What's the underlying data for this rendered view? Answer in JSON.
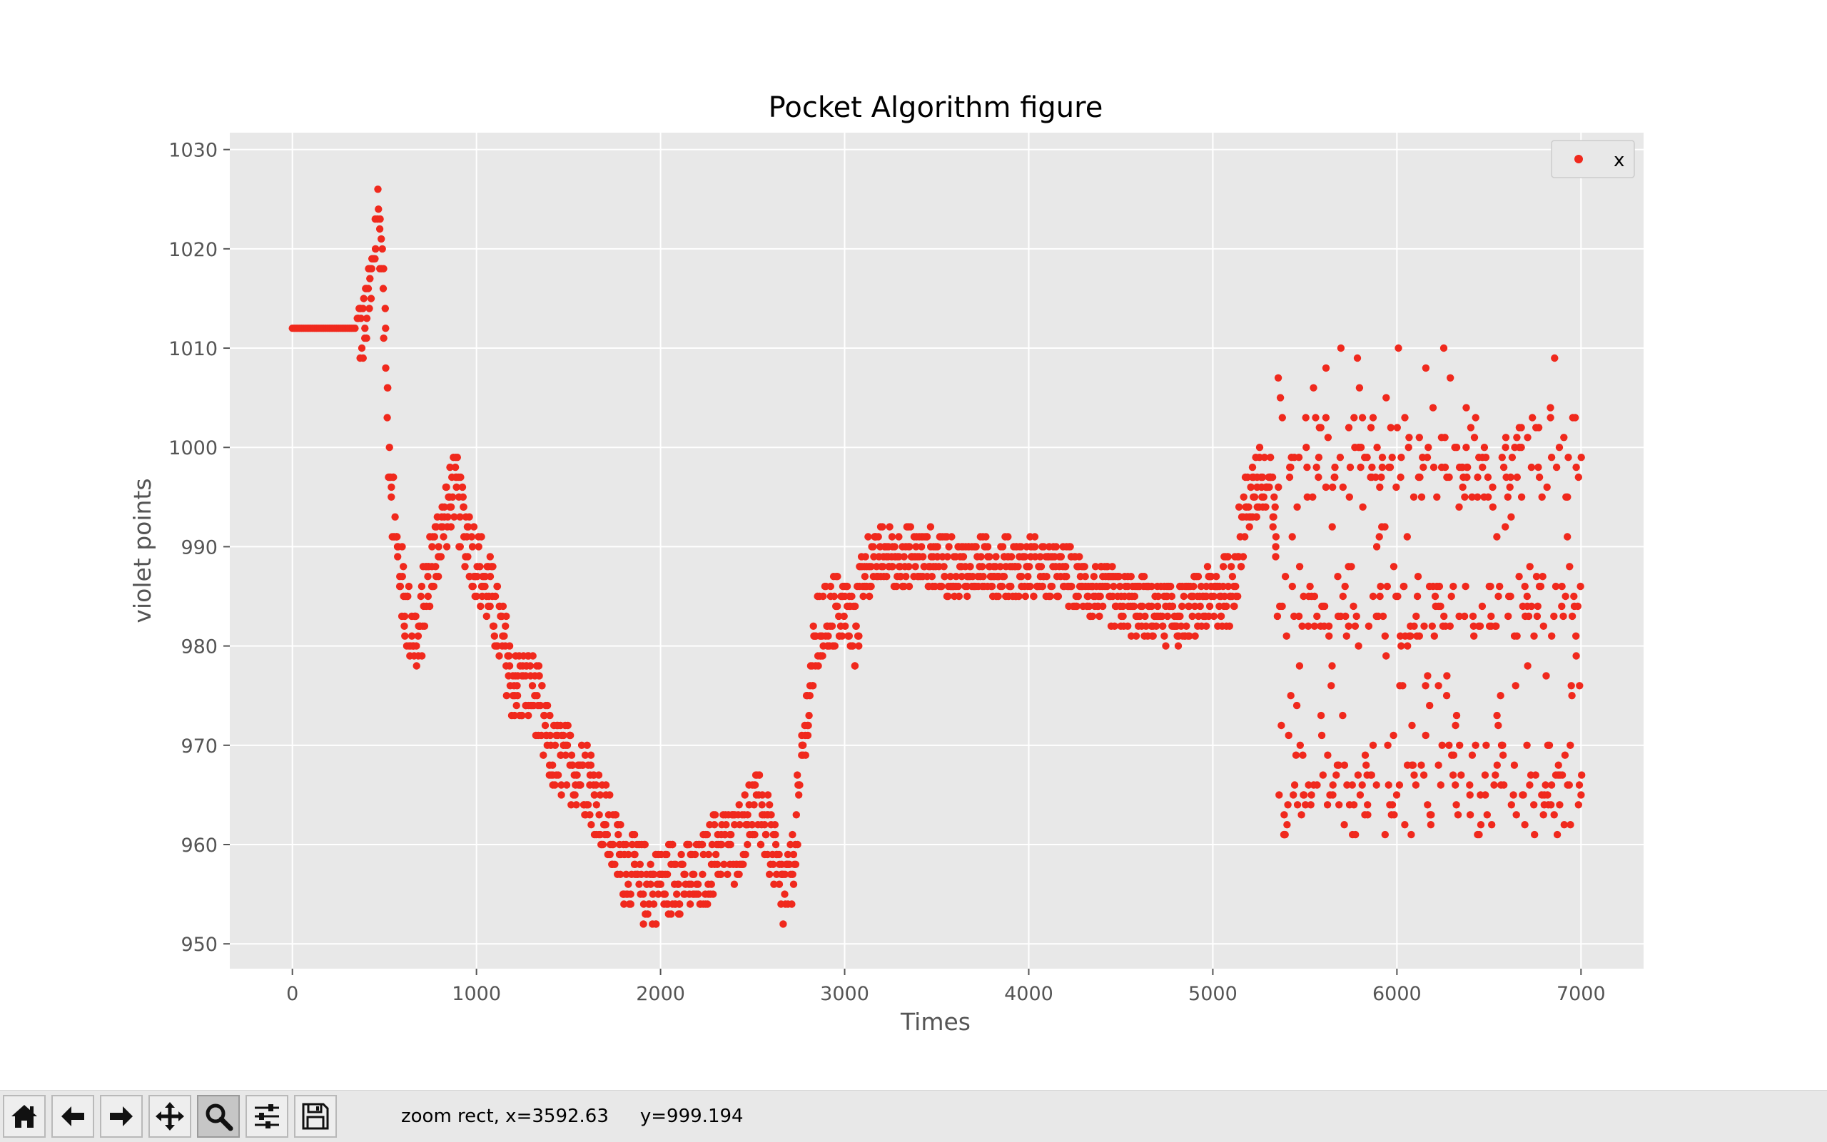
{
  "window": {
    "toolbar": {
      "buttons": [
        {
          "name": "home-button",
          "icon": "home-icon"
        },
        {
          "name": "back-button",
          "icon": "arrow-left-icon"
        },
        {
          "name": "forward-button",
          "icon": "arrow-right-icon"
        },
        {
          "name": "pan-button",
          "icon": "move-icon"
        },
        {
          "name": "zoom-button",
          "icon": "magnifier-icon",
          "active": true
        },
        {
          "name": "subplots-button",
          "icon": "sliders-icon"
        },
        {
          "name": "save-button",
          "icon": "floppy-disk-icon"
        }
      ],
      "status_x": "zoom rect, x=3592.63",
      "status_y": "y=999.194"
    }
  },
  "colors": {
    "axes_bg": "#e8e8e8",
    "grid": "#ffffff",
    "marker": "#f0291d",
    "tick_text": "#555555",
    "label_text": "#555555",
    "title_text": "#000000"
  },
  "chart_data": {
    "type": "scatter",
    "title": "Pocket Algorithm figure",
    "xlabel": "Times",
    "ylabel": "violet points",
    "xlim": [
      -340,
      7340
    ],
    "ylim": [
      947.5,
      1031.7
    ],
    "xticks": [
      0,
      1000,
      2000,
      3000,
      4000,
      5000,
      6000,
      7000
    ],
    "yticks": [
      950,
      960,
      970,
      980,
      990,
      1000,
      1010,
      1020,
      1030
    ],
    "grid": true,
    "legend": {
      "position": "top-right",
      "entries": [
        "x"
      ]
    },
    "series": [
      {
        "name": "x",
        "n_points": 7000,
        "approx_trajectory": {
          "x": [
            0,
            350,
            380,
            420,
            460,
            480,
            520,
            560,
            620,
            680,
            720,
            780,
            870,
            950,
            1050,
            1150,
            1200,
            1300,
            1400,
            1500,
            1600,
            1700,
            1800,
            1900,
            2000,
            2100,
            2200,
            2300,
            2400,
            2500,
            2550,
            2600,
            2650,
            2700,
            2750,
            2800,
            2850,
            2900,
            3000,
            3050,
            3100,
            3200,
            3400,
            3600,
            3800,
            4000,
            4200,
            4400,
            4600,
            4800,
            5000,
            5100,
            5200,
            5300,
            5350,
            7000
          ],
          "y": [
            1012,
            1012,
            1012,
            1015,
            1024,
            1020,
            1000,
            990,
            983,
            980,
            986,
            990,
            996,
            991,
            986,
            980,
            976,
            976,
            969,
            968,
            967,
            962,
            958,
            956,
            956,
            957,
            956,
            960,
            960,
            964,
            963,
            960,
            955,
            956,
            965,
            975,
            981,
            983,
            984,
            981,
            988,
            989,
            989,
            988,
            988,
            988,
            987,
            985,
            984,
            983,
            985,
            986,
            996,
            996,
            990,
            990
          ]
        },
        "late_phase": {
          "x_range": [
            5350,
            7000
          ],
          "y_bands": [
            1000,
            997,
            985,
            983,
            967,
            964
          ],
          "y_min": 961,
          "y_max": 1012
        }
      }
    ]
  }
}
